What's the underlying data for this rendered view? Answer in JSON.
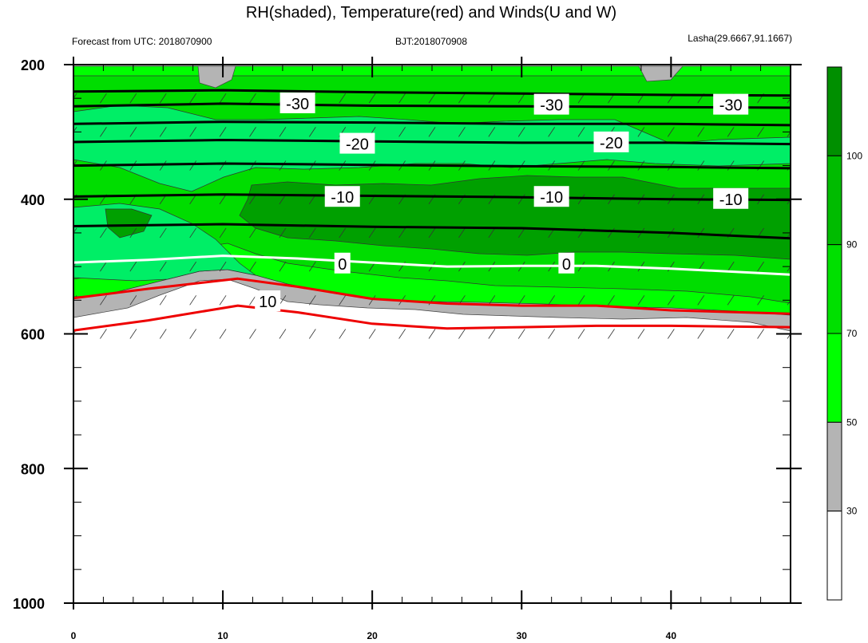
{
  "chart_data": {
    "type": "contour",
    "title": "RH(shaded), Temperature(red) and Winds(U and W)",
    "subtitle_left": "Forecast from UTC: 2018070900",
    "subtitle_center": "BJT:2018070908",
    "subtitle_right": "Lasha(29.6667,91.1667)",
    "x_range": [
      0,
      48
    ],
    "x_ticks": [
      0,
      10,
      20,
      30,
      40
    ],
    "y_range": [
      200,
      1000
    ],
    "y_inverted": true,
    "y_ticks": [
      200,
      400,
      600,
      800,
      1000
    ],
    "colorbar": {
      "levels": [
        30,
        50,
        70,
        90,
        100
      ],
      "colors": [
        "#ffffff",
        "#b4b4b4",
        "#00ff00",
        "#00e000",
        "#00bb00",
        "#008f00"
      ]
    },
    "temperature_lines": {
      "labels": [
        {
          "text": "-30",
          "x": 15,
          "y": 258
        },
        {
          "text": "-30",
          "x": 32,
          "y": 260
        },
        {
          "text": "-30",
          "x": 44,
          "y": 260
        },
        {
          "text": "-20",
          "x": 19,
          "y": 318
        },
        {
          "text": "-20",
          "x": 36,
          "y": 316
        },
        {
          "text": "-10",
          "x": 18,
          "y": 397
        },
        {
          "text": "-10",
          "x": 32,
          "y": 397
        },
        {
          "text": "-10",
          "x": 44,
          "y": 400
        },
        {
          "text": "0",
          "x": 18,
          "y": 496
        },
        {
          "text": "0",
          "x": 33,
          "y": 496
        },
        {
          "text": "10",
          "x": 13,
          "y": 552
        }
      ],
      "contours": [
        {
          "level": -30,
          "points": [
            [
              0,
              240
            ],
            [
              10,
              238
            ],
            [
              20,
              241
            ],
            [
              30,
              243
            ],
            [
              40,
              245
            ],
            [
              48,
              246
            ]
          ]
        },
        {
          "level": -30,
          "points": [
            [
              0,
              262
            ],
            [
              10,
              258
            ],
            [
              20,
              261
            ],
            [
              30,
              262
            ],
            [
              40,
              263
            ],
            [
              48,
              264
            ]
          ]
        },
        {
          "level": -30,
          "points": [
            [
              0,
              288
            ],
            [
              10,
              285
            ],
            [
              20,
              286
            ],
            [
              30,
              288
            ],
            [
              40,
              288
            ],
            [
              48,
              290
            ]
          ]
        },
        {
          "level": -20,
          "points": [
            [
              0,
              315
            ],
            [
              10,
              312
            ],
            [
              20,
              314
            ],
            [
              30,
              316
            ],
            [
              40,
              316
            ],
            [
              48,
              318
            ]
          ]
        },
        {
          "level": -20,
          "points": [
            [
              0,
              350
            ],
            [
              10,
              347
            ],
            [
              20,
              349
            ],
            [
              30,
              351
            ],
            [
              40,
              352
            ],
            [
              48,
              354
            ]
          ]
        },
        {
          "level": -10,
          "points": [
            [
              0,
              396
            ],
            [
              10,
              393
            ],
            [
              20,
              395
            ],
            [
              30,
              397
            ],
            [
              40,
              400
            ],
            [
              48,
              401
            ]
          ]
        },
        {
          "level": -10,
          "points": [
            [
              0,
              440
            ],
            [
              10,
              437
            ],
            [
              20,
              441
            ],
            [
              30,
              443
            ],
            [
              40,
              450
            ],
            [
              48,
              458
            ]
          ]
        },
        {
          "level": 0,
          "points": [
            [
              0,
              494
            ],
            [
              5,
              490
            ],
            [
              10,
              484
            ],
            [
              15,
              488
            ],
            [
              20,
              494
            ],
            [
              25,
              500
            ],
            [
              30,
              499
            ],
            [
              35,
              499
            ],
            [
              40,
              503
            ],
            [
              48,
              512
            ]
          ]
        },
        {
          "level": 10,
          "points": [
            [
              0,
              547
            ],
            [
              5,
              533
            ],
            [
              11,
              518
            ],
            [
              15,
              530
            ],
            [
              20,
              548
            ],
            [
              25,
              555
            ],
            [
              30,
              558
            ],
            [
              35,
              558
            ],
            [
              40,
              565
            ],
            [
              48,
              570
            ]
          ]
        },
        {
          "level": 10,
          "points": [
            [
              0,
              595
            ],
            [
              5,
              580
            ],
            [
              11,
              558
            ],
            [
              15,
              568
            ],
            [
              20,
              585
            ],
            [
              25,
              592
            ],
            [
              30,
              590
            ],
            [
              35,
              588
            ],
            [
              40,
              588
            ],
            [
              48,
              590
            ]
          ]
        }
      ]
    }
  }
}
